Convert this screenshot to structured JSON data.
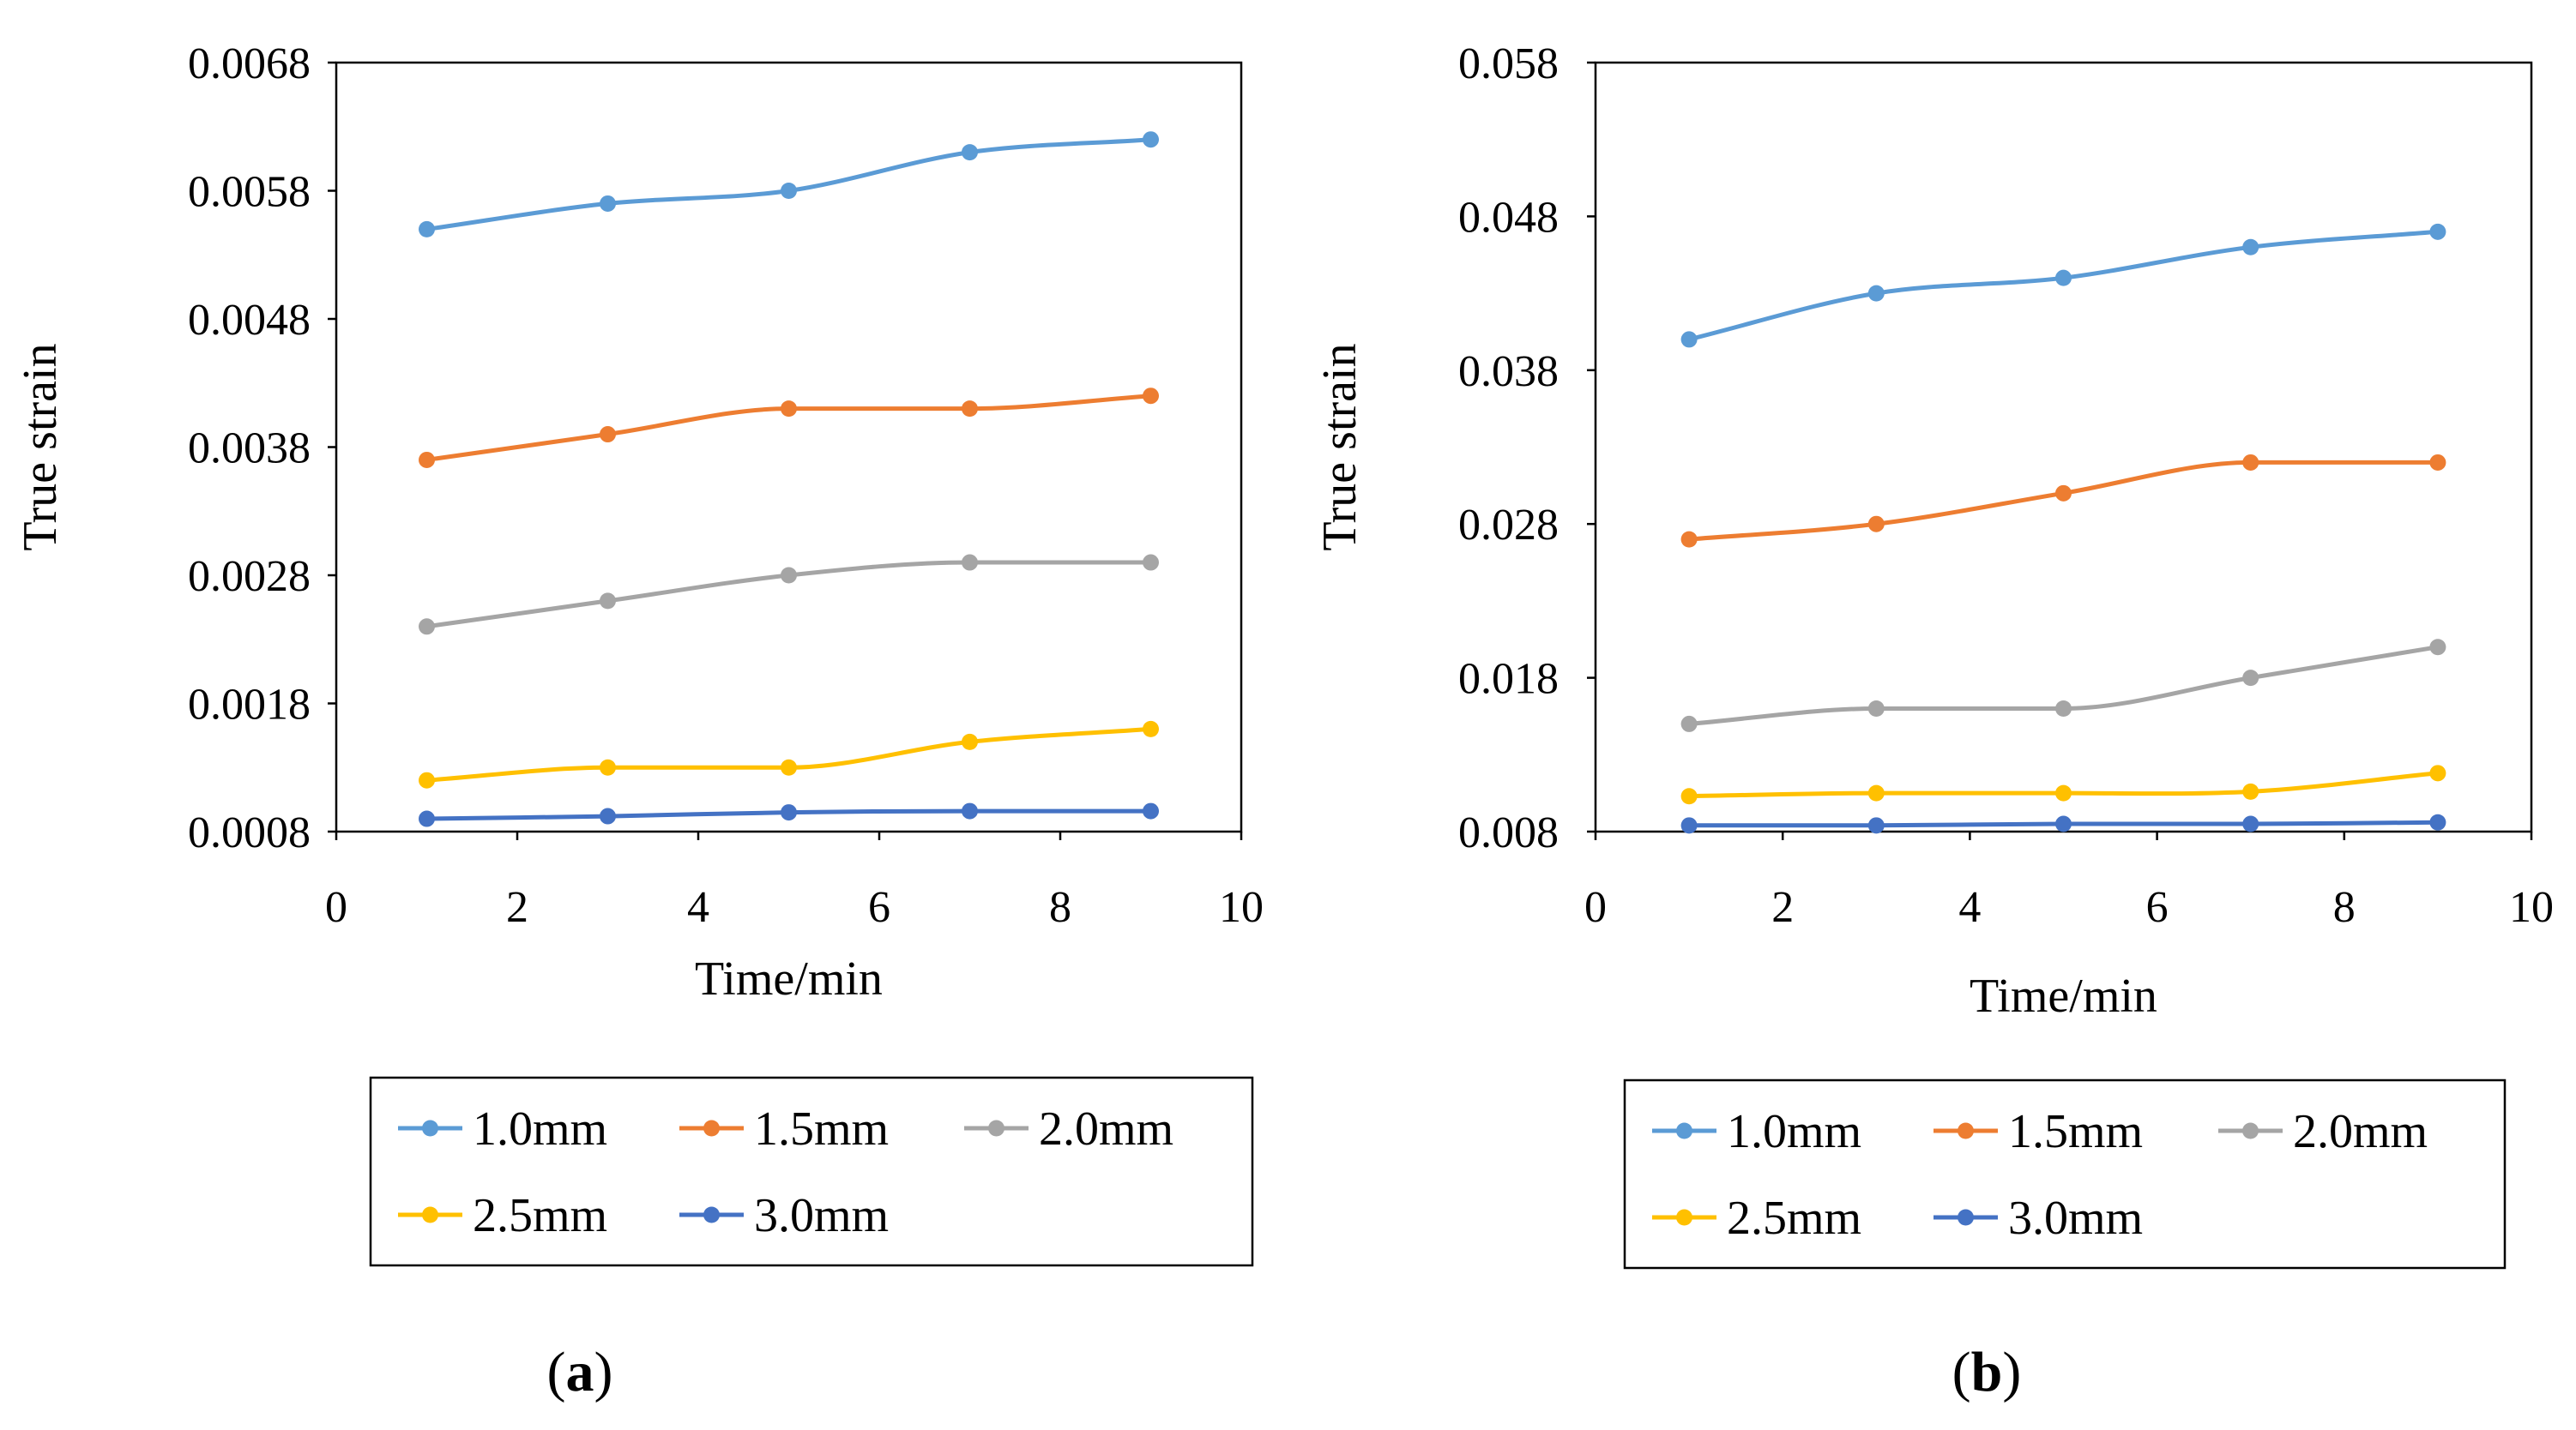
{
  "chart_data": [
    {
      "type": "line",
      "panel_label": "a",
      "xlabel": "Time/min",
      "ylabel": "True strain",
      "xlim": [
        0,
        10
      ],
      "ylim": [
        0.0008,
        0.0068
      ],
      "x_ticks": [
        "0",
        "2",
        "4",
        "6",
        "8",
        "10"
      ],
      "y_ticks": [
        "0.0008",
        "0.0018",
        "0.0028",
        "0.0038",
        "0.0048",
        "0.0058",
        "0.0068"
      ],
      "x": [
        1,
        3,
        5,
        7,
        9
      ],
      "series": [
        {
          "name": "1.0mm",
          "color": "#5B9BD5",
          "values": [
            0.0055,
            0.0057,
            0.0058,
            0.0061,
            0.0062
          ]
        },
        {
          "name": "1.5mm",
          "color": "#ED7D31",
          "values": [
            0.0037,
            0.0039,
            0.0041,
            0.0041,
            0.0042
          ]
        },
        {
          "name": "2.0mm",
          "color": "#A5A5A5",
          "values": [
            0.0024,
            0.0026,
            0.0028,
            0.0029,
            0.0029
          ]
        },
        {
          "name": "2.5mm",
          "color": "#FFC000",
          "values": [
            0.0012,
            0.0013,
            0.0013,
            0.0015,
            0.0016
          ]
        },
        {
          "name": "3.0mm",
          "color": "#4472C4",
          "values": [
            0.0009,
            0.00092,
            0.00095,
            0.00096,
            0.00096
          ]
        }
      ]
    },
    {
      "type": "line",
      "panel_label": "b",
      "xlabel": "Time/min",
      "ylabel": "True strain",
      "xlim": [
        0,
        10
      ],
      "ylim": [
        0.008,
        0.058
      ],
      "x_ticks": [
        "0",
        "2",
        "4",
        "6",
        "8",
        "10"
      ],
      "y_ticks": [
        "0.008",
        "0.018",
        "0.028",
        "0.038",
        "0.048",
        "0.058"
      ],
      "x": [
        1,
        3,
        5,
        7,
        9
      ],
      "series": [
        {
          "name": "1.0mm",
          "color": "#5B9BD5",
          "values": [
            0.04,
            0.043,
            0.044,
            0.046,
            0.047
          ]
        },
        {
          "name": "1.5mm",
          "color": "#ED7D31",
          "values": [
            0.027,
            0.028,
            0.03,
            0.032,
            0.032
          ]
        },
        {
          "name": "2.0mm",
          "color": "#A5A5A5",
          "values": [
            0.015,
            0.016,
            0.016,
            0.018,
            0.02
          ]
        },
        {
          "name": "2.5mm",
          "color": "#FFC000",
          "values": [
            0.0103,
            0.0105,
            0.0105,
            0.0106,
            0.0118
          ]
        },
        {
          "name": "3.0mm",
          "color": "#4472C4",
          "values": [
            0.0084,
            0.0084,
            0.0085,
            0.0085,
            0.0086
          ]
        }
      ]
    }
  ]
}
